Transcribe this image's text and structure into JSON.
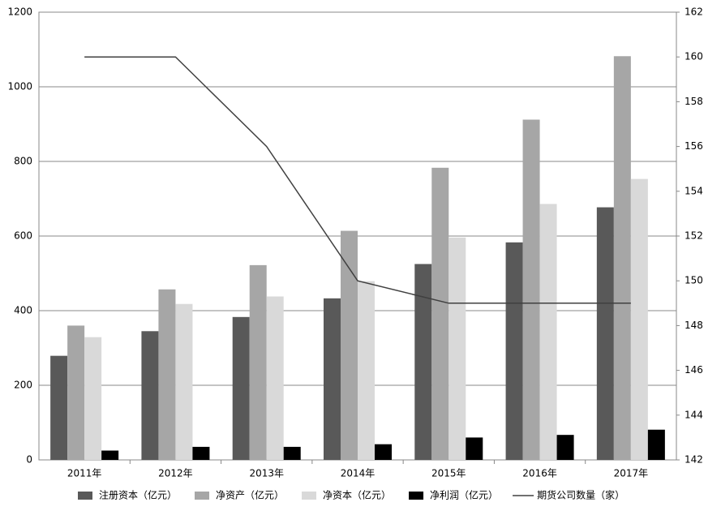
{
  "chart_data": {
    "type": "bar",
    "categories": [
      "2011年",
      "2012年",
      "2013年",
      "2014年",
      "2015年",
      "2016年",
      "2017年"
    ],
    "series": [
      {
        "name": "注册资本（亿元）",
        "color": "#595959",
        "values": [
          279,
          345,
          383,
          433,
          525,
          583,
          677
        ]
      },
      {
        "name": "净资产（亿元）",
        "color": "#a6a6a6",
        "values": [
          360,
          457,
          522,
          614,
          783,
          912,
          1082
        ]
      },
      {
        "name": "净资本（亿元）",
        "color": "#d9d9d9",
        "values": [
          329,
          418,
          438,
          479,
          596,
          686,
          753
        ]
      },
      {
        "name": "净利润（亿元）",
        "color": "#000000",
        "values": [
          25,
          35,
          35,
          42,
          60,
          67,
          81
        ]
      },
      {
        "name": "期货公司数量（家）",
        "color": "#404040",
        "type": "line",
        "axis": "y2",
        "values": [
          160,
          160,
          156,
          150,
          149,
          149,
          149
        ]
      }
    ],
    "ylim": [
      0,
      1200
    ],
    "yticks": [
      0,
      200,
      400,
      600,
      800,
      1000,
      1200
    ],
    "y2lim": [
      142,
      162
    ],
    "y2ticks": [
      142,
      144,
      146,
      148,
      150,
      152,
      154,
      156,
      158,
      160,
      162
    ],
    "grid": true,
    "legend": "bottom"
  }
}
